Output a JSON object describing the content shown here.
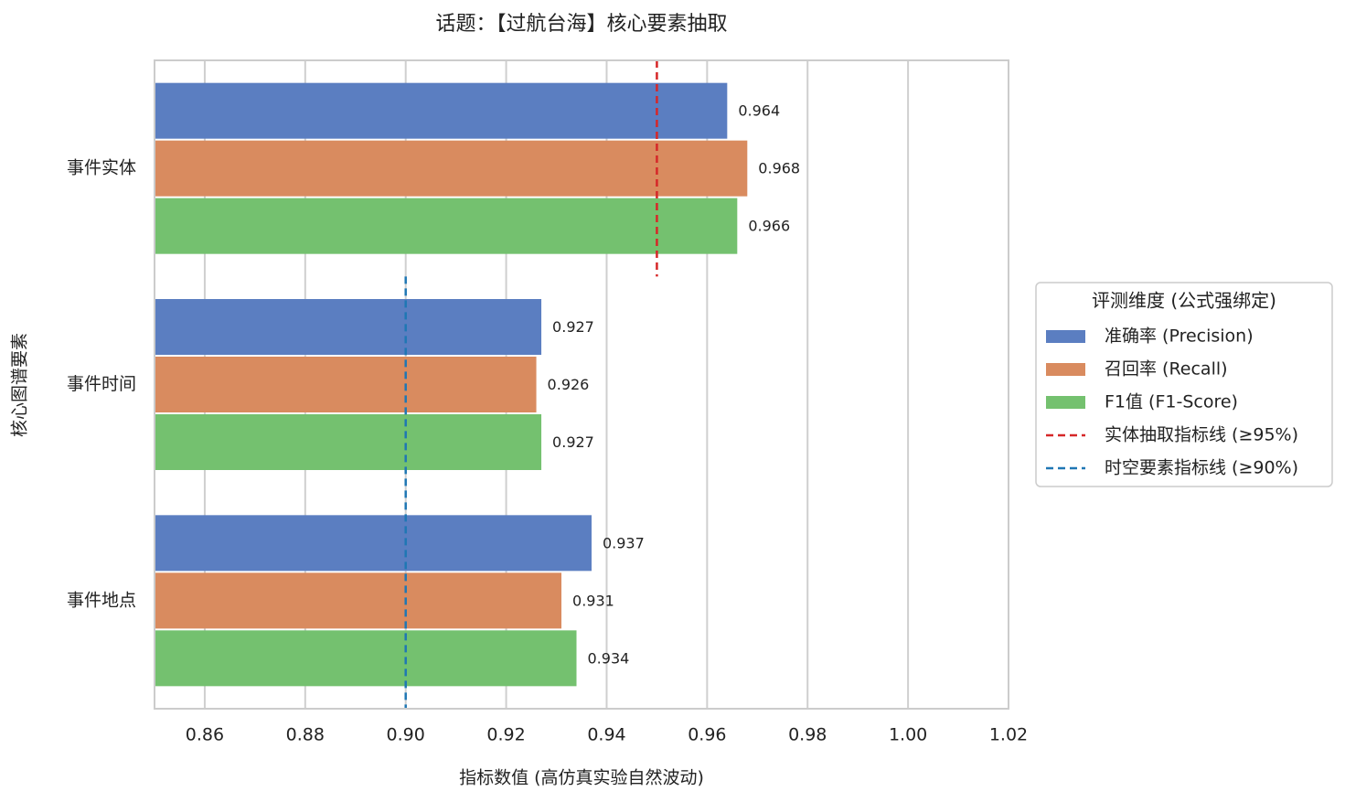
{
  "chart_data": {
    "type": "bar",
    "orientation": "horizontal",
    "title": "话题：【过航台海】核心要素抽取",
    "xlabel": "指标数值 (高仿真实验自然波动)",
    "ylabel": "核心图谱要素",
    "categories": [
      "事件实体",
      "事件时间",
      "事件地点"
    ],
    "series": [
      {
        "name": "准确率 (Precision)",
        "color": "#5b7ec1",
        "values": [
          0.964,
          0.927,
          0.937
        ]
      },
      {
        "name": "召回率 (Recall)",
        "color": "#d98b5f",
        "values": [
          0.968,
          0.926,
          0.931
        ]
      },
      {
        "name": "F1值 (F1-Score)",
        "color": "#74c16f",
        "values": [
          0.966,
          0.927,
          0.934
        ]
      }
    ],
    "reference_lines": [
      {
        "name": "实体抽取指标线 (≥95%)",
        "value": 0.95,
        "color": "#d62728"
      },
      {
        "name": "时空要素指标线 (≥90%)",
        "value": 0.9,
        "color": "#1f77b4"
      }
    ],
    "legend_title": "评测维度 (公式强绑定)",
    "legend": "right",
    "xlim": [
      0.85,
      1.02
    ],
    "xticks": [
      0.86,
      0.88,
      {
        "value": 0.9,
        "label": "0.90"
      },
      0.92,
      0.94,
      0.96,
      0.98,
      {
        "value": 1,
        "label": "1.00"
      },
      1.02
    ],
    "grid": true
  }
}
